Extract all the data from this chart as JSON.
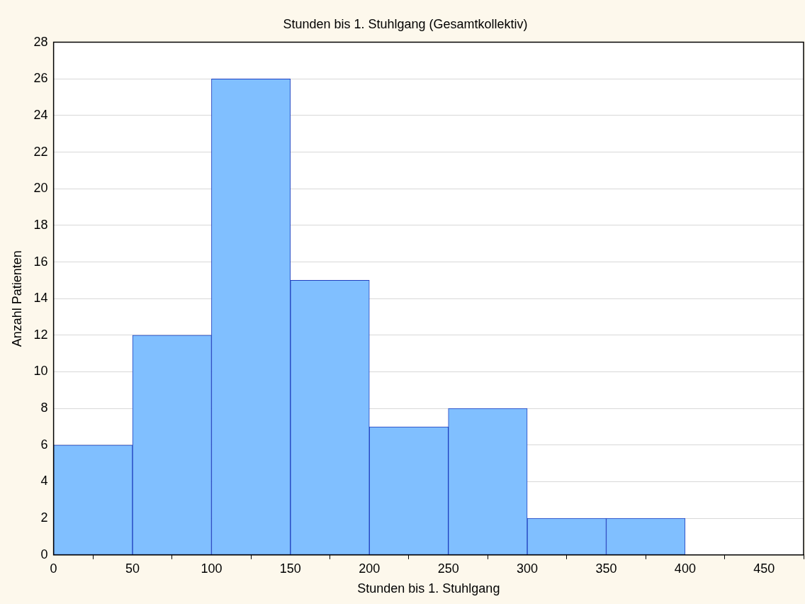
{
  "chart_data": {
    "type": "histogram",
    "title": "Stunden bis 1. Stuhlgang (Gesamtkollektiv)",
    "xlabel": "Stunden bis 1. Stuhlgang",
    "ylabel": "Anzahl Patienten",
    "bins": [
      0,
      50,
      100,
      150,
      200,
      250,
      300,
      350,
      400
    ],
    "values": [
      6,
      12,
      26,
      15,
      7,
      8,
      2,
      2
    ],
    "color": "#80bfff",
    "xlim": [
      0,
      475
    ],
    "xticks": [
      0,
      50,
      100,
      150,
      200,
      250,
      300,
      350,
      400,
      450
    ],
    "ylim": [
      0,
      28
    ],
    "yticks": [
      0,
      2,
      4,
      6,
      8,
      10,
      12,
      14,
      16,
      18,
      20,
      22,
      24,
      26,
      28
    ],
    "grid": "y"
  }
}
